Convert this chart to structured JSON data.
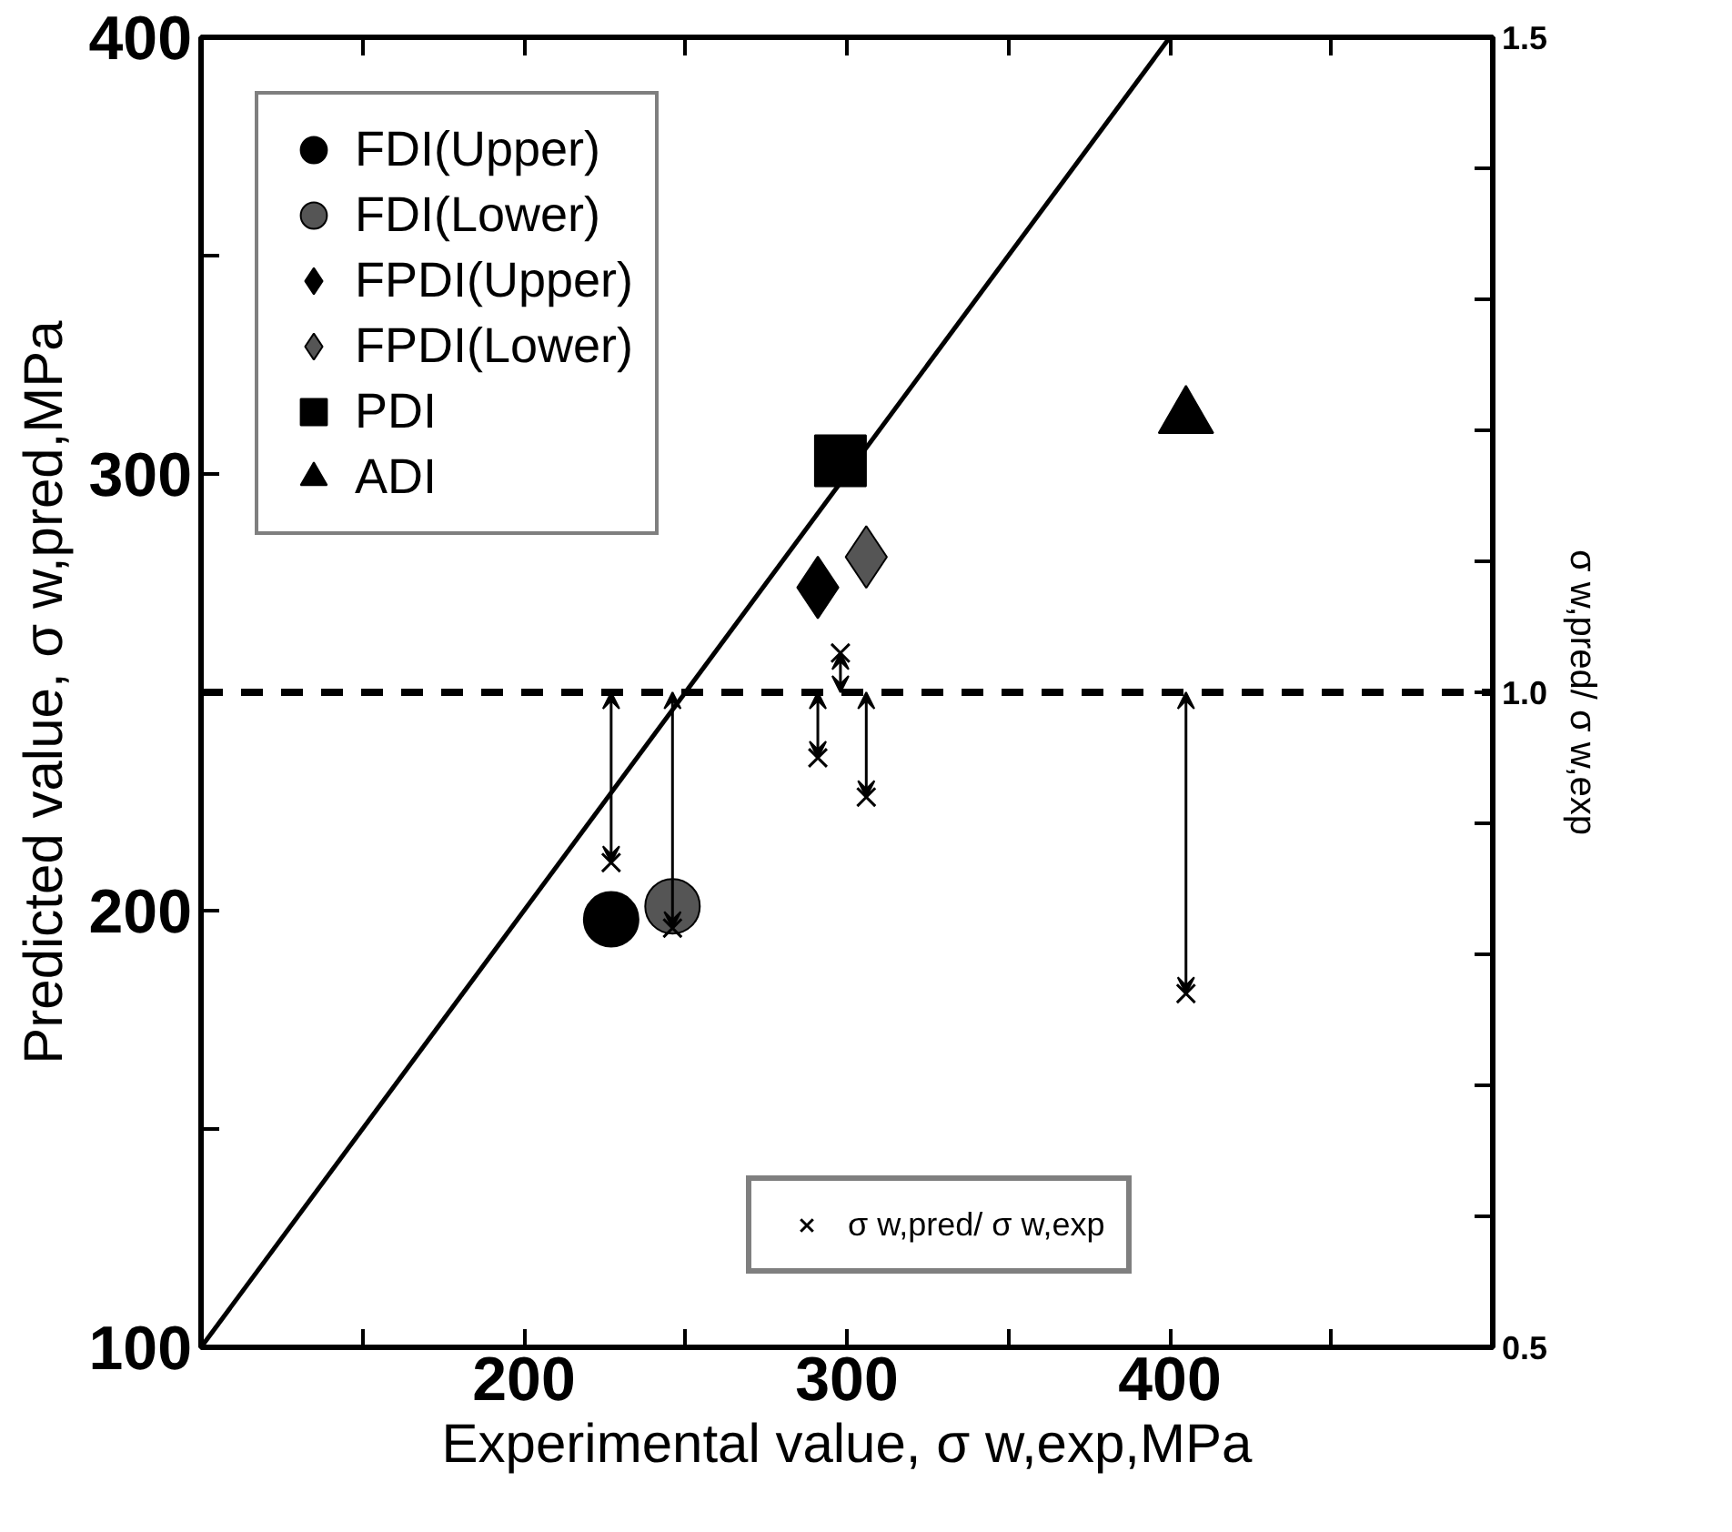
{
  "chart_data": {
    "type": "scatter",
    "xlabel": "Experimental value, σ w,exp,MPa",
    "ylabel": "Predicted value, σ w,pred,MPa",
    "y2label": "σ w,pred/ σ w,exp",
    "xlim": [
      100,
      500
    ],
    "ylim": [
      100,
      400
    ],
    "y2lim": [
      0.5,
      1.5
    ],
    "xticks": [
      {
        "value": 150,
        "label": null
      },
      200,
      {
        "value": 250,
        "label": null
      },
      300,
      {
        "value": 350,
        "label": null
      },
      400,
      {
        "value": 450,
        "label": null
      }
    ],
    "yticks": [
      100,
      {
        "value": 150,
        "label": null
      },
      200,
      {
        "value": 250,
        "label": null
      },
      300,
      {
        "value": 350,
        "label": null
      },
      400
    ],
    "y2ticks": [
      0.5,
      {
        "value": 0.6,
        "label": null
      },
      {
        "value": 0.7,
        "label": null
      },
      {
        "value": 0.8,
        "label": null
      },
      {
        "value": 0.9,
        "label": null
      },
      {
        "value": 1,
        "label": "1.0"
      },
      {
        "value": 1.1,
        "label": null
      },
      {
        "value": 1.2,
        "label": null
      },
      {
        "value": 1.3,
        "label": null
      },
      {
        "value": 1.4,
        "label": null
      },
      1.5
    ],
    "grid": false,
    "legend": "top left",
    "series": [
      {
        "name": "FDI(Upper)",
        "color": "#000000",
        "marker": "circle",
        "x": [
          227
        ],
        "values": [
          198
        ]
      },
      {
        "name": "FDI(Lower)",
        "color": "#555555",
        "marker": "circle",
        "x": [
          246
        ],
        "values": [
          201
        ]
      },
      {
        "name": "FPDI(Upper)",
        "color": "#000000",
        "marker": "diamond",
        "x": [
          291
        ],
        "values": [
          274
        ]
      },
      {
        "name": "FPDI(Lower)",
        "color": "#555555",
        "marker": "diamond",
        "x": [
          306
        ],
        "values": [
          281
        ]
      },
      {
        "name": "PDI",
        "color": "#000000",
        "marker": "square",
        "x": [
          298
        ],
        "values": [
          303
        ]
      },
      {
        "name": "ADI",
        "color": "#000000",
        "marker": "triangle",
        "x": [
          405
        ],
        "values": [
          313
        ]
      },
      {
        "type": "line",
        "color": "#000000",
        "line_style": "solid",
        "x": [
          100,
          400
        ],
        "values": [
          100,
          400
        ]
      },
      {
        "name": "σ w,pred/ σ w,exp",
        "axis": "y2",
        "color": "#000000",
        "marker": "cross",
        "x": [
          227,
          246,
          291,
          298,
          306,
          405
        ],
        "values": [
          0.87,
          0.82,
          0.95,
          1.03,
          0.92,
          0.77
        ]
      }
    ],
    "ref_lines": [
      {
        "axis": "y2",
        "value": 1,
        "label": null,
        "color": "#000000",
        "line_style": "dashed"
      }
    ]
  }
}
